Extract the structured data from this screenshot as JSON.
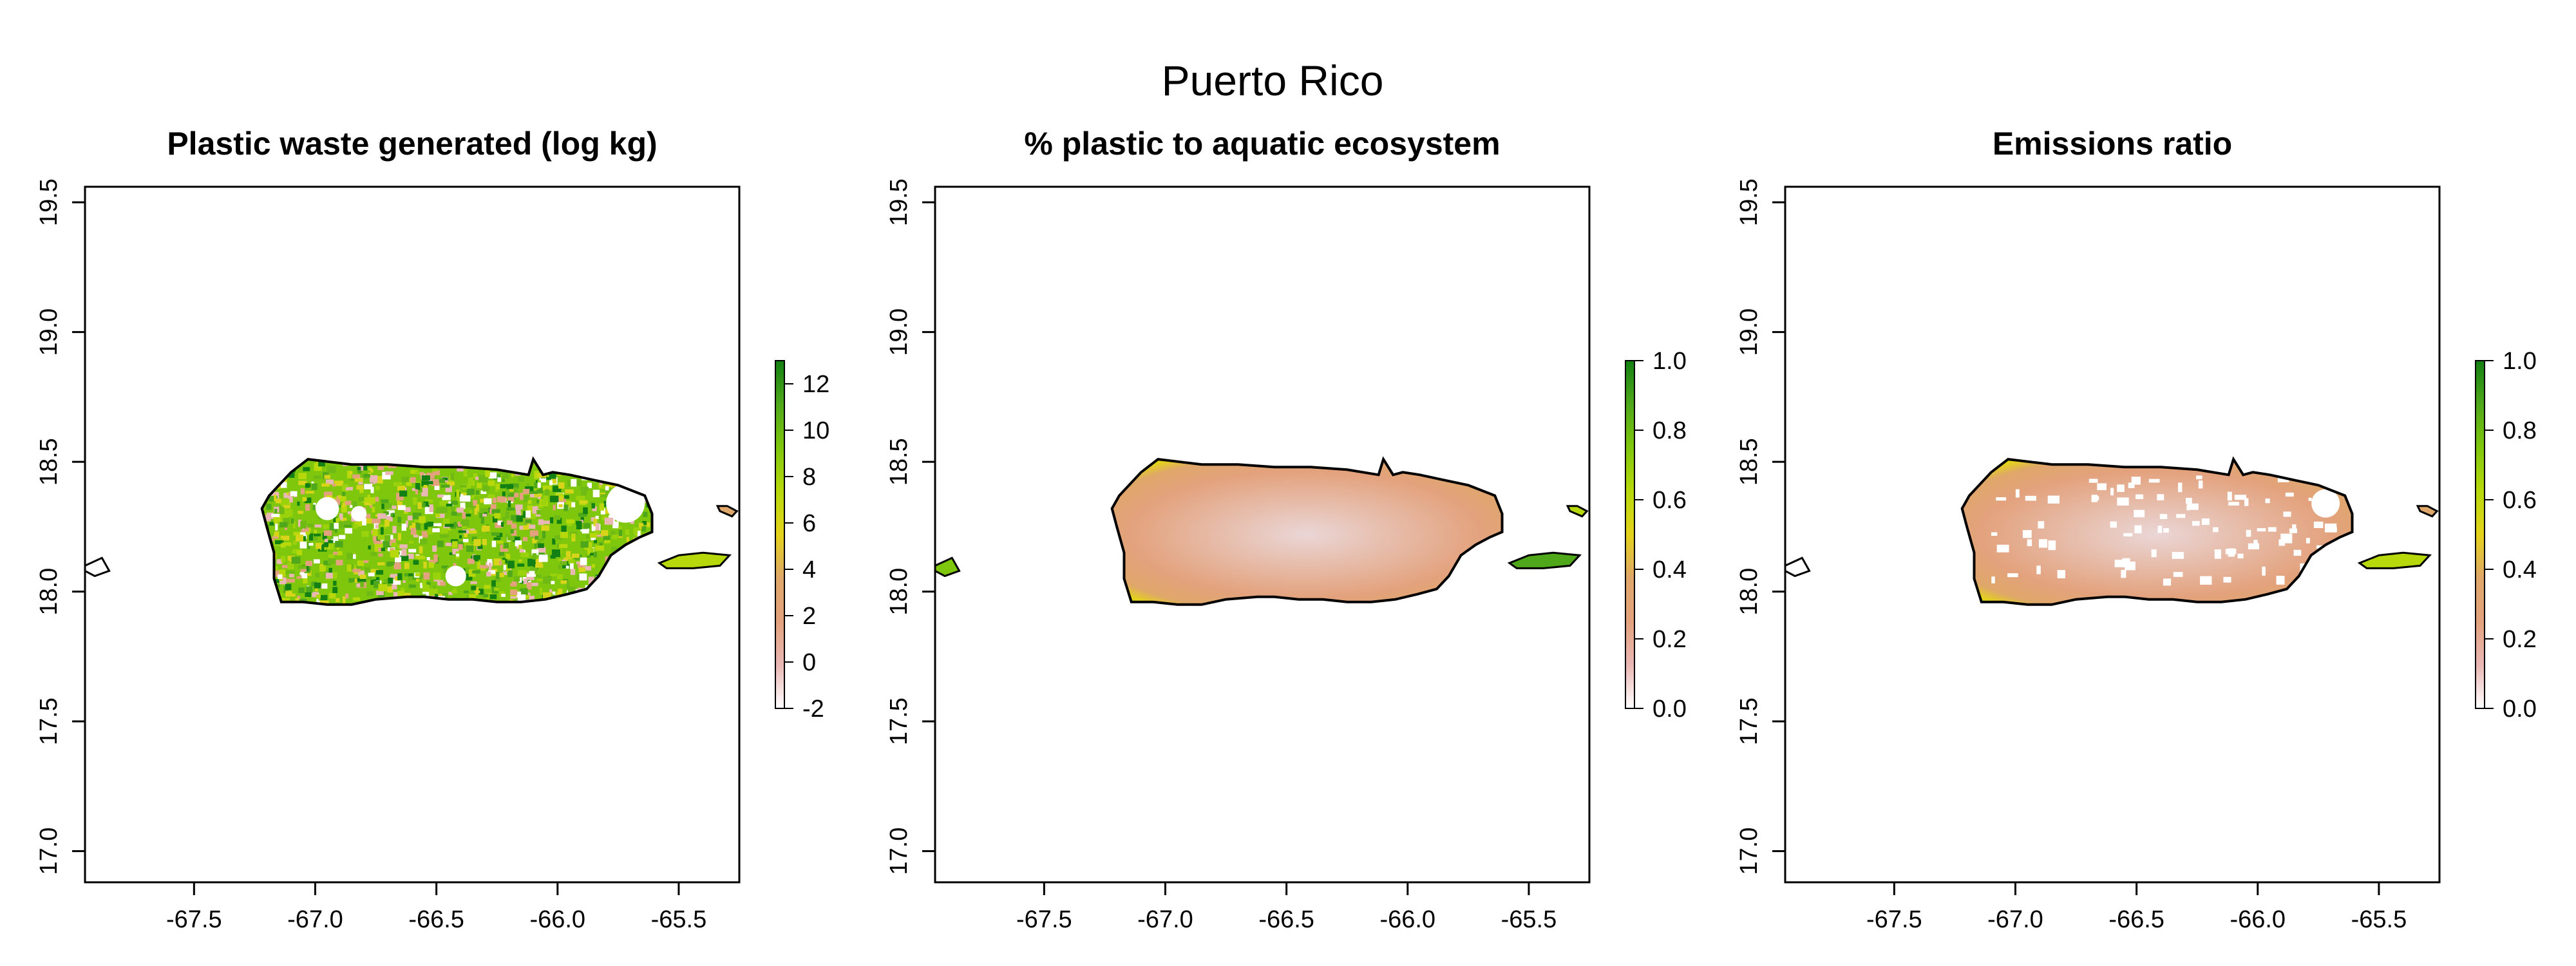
{
  "figure": {
    "title": "Puerto Rico"
  },
  "colors": {
    "scale": [
      "#ffffff",
      "#e9b7b4",
      "#e3a27d",
      "#dfa769",
      "#e4d21a",
      "#b7d90c",
      "#7fc70d",
      "#4fa81a",
      "#128012"
    ],
    "outline": "#000000"
  },
  "panels": [
    {
      "id": "waste",
      "title": "Plastic waste generated (log kg)",
      "fill_style": "speckled",
      "colorbar": {
        "min": -2,
        "max": 13,
        "ticks": [
          "-2",
          "0",
          "2",
          "4",
          "6",
          "8",
          "10",
          "12"
        ],
        "tick_values": [
          -2,
          0,
          2,
          4,
          6,
          8,
          10,
          12
        ]
      }
    },
    {
      "id": "aquatic",
      "title": "% plastic to aquatic ecosystem",
      "fill_style": "gradient",
      "colorbar": {
        "min": 0,
        "max": 1,
        "ticks": [
          "0.0",
          "0.2",
          "0.4",
          "0.6",
          "0.8",
          "1.0"
        ],
        "tick_values": [
          0,
          0.2,
          0.4,
          0.6,
          0.8,
          1.0
        ]
      }
    },
    {
      "id": "ratio",
      "title": "Emissions ratio",
      "fill_style": "gradient-gaps",
      "colorbar": {
        "min": 0,
        "max": 1,
        "ticks": [
          "0.0",
          "0.2",
          "0.4",
          "0.6",
          "0.8",
          "1.0"
        ],
        "tick_values": [
          0,
          0.2,
          0.4,
          0.6,
          0.8,
          1.0
        ]
      }
    }
  ],
  "axes": {
    "x_ticks": [
      "-67.5",
      "-67.0",
      "-66.5",
      "-66.0",
      "-65.5"
    ],
    "x_tick_values": [
      -67.5,
      -67.0,
      -66.5,
      -66.0,
      -65.5
    ],
    "y_ticks": [
      "17.0",
      "17.5",
      "18.0",
      "18.5",
      "19.0",
      "19.5"
    ],
    "y_tick_values": [
      17.0,
      17.5,
      18.0,
      18.5,
      19.0,
      19.5
    ],
    "xlim": [
      -67.95,
      -65.25
    ],
    "ylim": [
      16.88,
      19.56
    ]
  }
}
